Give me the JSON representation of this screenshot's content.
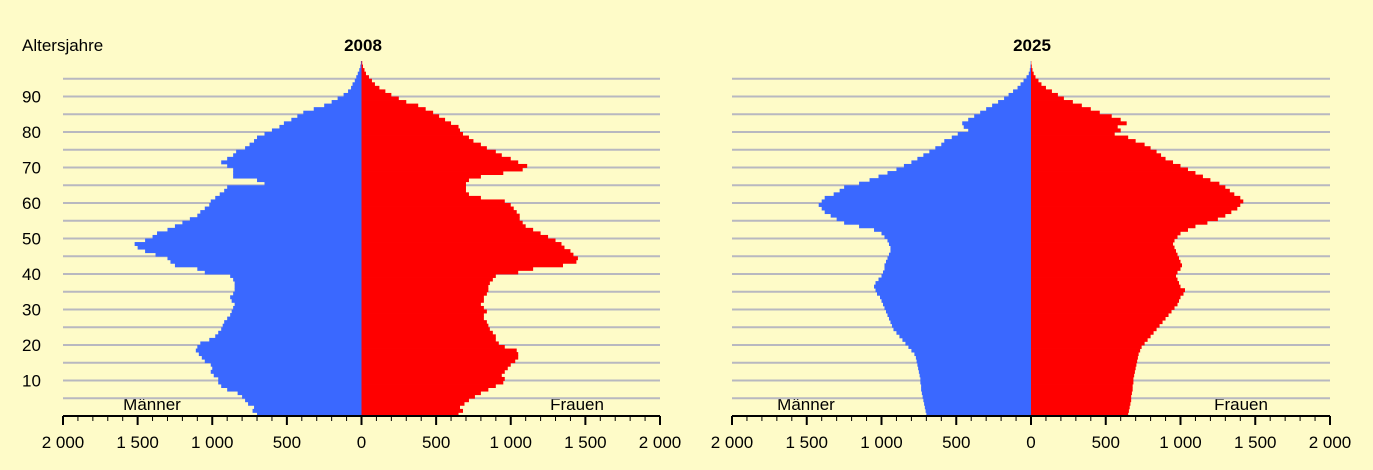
{
  "colors": {
    "background": "#fefbc8",
    "grid": "#b8b8c0",
    "men": "#3a68ff",
    "women": "#ff0000",
    "axis": "#000000"
  },
  "chart_data": [
    {
      "type": "bar",
      "orientation": "horizontal-pyramid",
      "title": "2008",
      "ylabel": "Altersjahre",
      "y_ticks": [
        "10",
        "20",
        "30",
        "40",
        "50",
        "60",
        "70",
        "80",
        "90"
      ],
      "x_ticks": [
        "2 000",
        "1 500",
        "1 000",
        "500",
        "0",
        "500",
        "1 000",
        "1 500",
        "2 000"
      ],
      "xlim": [
        -2000,
        2000
      ],
      "ylim": [
        0,
        100
      ],
      "legend": {
        "left": "Männer",
        "right": "Frauen"
      },
      "grid": true,
      "series": [
        {
          "name": "Männer",
          "values": [
            700,
            730,
            720,
            760,
            780,
            800,
            830,
            900,
            940,
            960,
            960,
            990,
            1010,
            1000,
            1010,
            1050,
            1070,
            1090,
            1110,
            1100,
            1080,
            1020,
            980,
            960,
            940,
            930,
            920,
            900,
            880,
            870,
            860,
            850,
            870,
            880,
            860,
            850,
            850,
            850,
            860,
            880,
            1050,
            1100,
            1250,
            1280,
            1300,
            1380,
            1450,
            1500,
            1520,
            1450,
            1400,
            1370,
            1300,
            1250,
            1200,
            1150,
            1100,
            1080,
            1050,
            1020,
            1010,
            980,
            950,
            920,
            900,
            650,
            700,
            860,
            860,
            860,
            900,
            940,
            900,
            860,
            840,
            780,
            750,
            720,
            700,
            650,
            600,
            550,
            520,
            470,
            430,
            390,
            320,
            250,
            200,
            160,
            120,
            90,
            70,
            60,
            45,
            35,
            25,
            15,
            8,
            4
          ],
          "range": [
            1,
            100
          ]
        },
        {
          "name": "Frauen",
          "values": [
            650,
            680,
            660,
            690,
            720,
            760,
            800,
            850,
            900,
            950,
            960,
            940,
            960,
            980,
            1000,
            1030,
            1050,
            1050,
            1040,
            960,
            920,
            900,
            900,
            880,
            860,
            850,
            840,
            820,
            820,
            840,
            820,
            800,
            820,
            820,
            840,
            850,
            850,
            860,
            880,
            900,
            1050,
            1150,
            1350,
            1440,
            1450,
            1420,
            1400,
            1360,
            1340,
            1300,
            1250,
            1200,
            1150,
            1100,
            1080,
            1060,
            1060,
            1040,
            1020,
            1000,
            960,
            800,
            720,
            700,
            700,
            700,
            720,
            800,
            950,
            1080,
            1110,
            1050,
            1000,
            940,
            900,
            840,
            800,
            750,
            720,
            680,
            660,
            650,
            600,
            560,
            520,
            480,
            430,
            380,
            300,
            250,
            200,
            160,
            120,
            90,
            70,
            50,
            30,
            20,
            10,
            5
          ],
          "range": [
            1,
            100
          ]
        }
      ]
    },
    {
      "type": "bar",
      "orientation": "horizontal-pyramid",
      "title": "2025",
      "y_ticks": [],
      "x_ticks": [
        "2 000",
        "1 500",
        "1 000",
        "500",
        "0",
        "500",
        "1 000",
        "1 500",
        "2 000"
      ],
      "xlim": [
        -2000,
        2000
      ],
      "ylim": [
        0,
        100
      ],
      "legend": {
        "left": "Männer",
        "right": "Frauen"
      },
      "grid": true,
      "series": [
        {
          "name": "Männer",
          "values": [
            700,
            705,
            710,
            715,
            720,
            725,
            730,
            735,
            735,
            740,
            740,
            745,
            750,
            755,
            760,
            765,
            770,
            780,
            800,
            820,
            840,
            860,
            880,
            900,
            920,
            930,
            940,
            950,
            960,
            970,
            980,
            990,
            1000,
            1010,
            1030,
            1040,
            1050,
            1040,
            1020,
            1000,
            990,
            980,
            980,
            970,
            960,
            950,
            940,
            940,
            950,
            960,
            980,
            1000,
            1050,
            1150,
            1250,
            1300,
            1340,
            1380,
            1400,
            1420,
            1400,
            1380,
            1320,
            1280,
            1250,
            1150,
            1080,
            1020,
            960,
            900,
            850,
            800,
            760,
            720,
            680,
            640,
            600,
            580,
            530,
            490,
            420,
            450,
            460,
            420,
            380,
            340,
            300,
            260,
            220,
            180,
            150,
            120,
            90,
            70,
            50,
            30,
            15,
            8,
            4,
            2
          ],
          "range": [
            1,
            100
          ]
        },
        {
          "name": "Frauen",
          "values": [
            650,
            655,
            660,
            665,
            670,
            670,
            675,
            680,
            680,
            685,
            685,
            690,
            695,
            700,
            705,
            710,
            715,
            720,
            730,
            740,
            760,
            780,
            800,
            820,
            840,
            860,
            880,
            900,
            920,
            940,
            960,
            980,
            990,
            1000,
            1020,
            1030,
            1000,
            990,
            980,
            970,
            980,
            1000,
            1010,
            1000,
            990,
            980,
            970,
            960,
            950,
            960,
            980,
            1000,
            1050,
            1100,
            1180,
            1250,
            1300,
            1340,
            1380,
            1400,
            1420,
            1400,
            1360,
            1330,
            1300,
            1260,
            1200,
            1150,
            1100,
            1050,
            1000,
            950,
            900,
            870,
            840,
            800,
            760,
            700,
            650,
            560,
            600,
            580,
            640,
            600,
            540,
            460,
            400,
            340,
            280,
            220,
            180,
            140,
            100,
            70,
            50,
            30,
            18,
            10,
            5,
            2
          ],
          "range": [
            1,
            100
          ]
        }
      ]
    }
  ]
}
